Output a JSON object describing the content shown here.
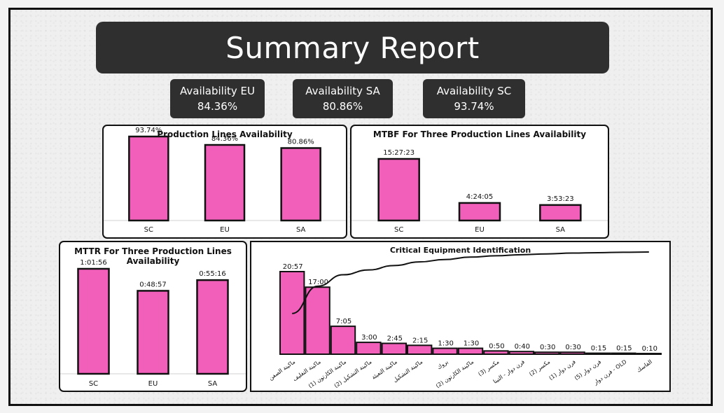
{
  "header": {
    "title": "Summary Report"
  },
  "kpis": [
    {
      "label": "Availability EU",
      "value": "84.36%"
    },
    {
      "label": "Availability SA",
      "value": "80.86%"
    },
    {
      "label": "Availability SC",
      "value": "93.74%"
    }
  ],
  "colors": {
    "bar": "#f25fba",
    "bar_stroke": "#111111",
    "tile_bg": "#2f2f2f"
  },
  "chart_data": [
    {
      "type": "bar",
      "title": "Production Lines Availability",
      "categories": [
        "SC",
        "EU",
        "SA"
      ],
      "values": [
        93.74,
        84.36,
        80.86
      ],
      "data_labels": [
        "93.74%",
        "84.36%",
        "80.86%"
      ],
      "ylim": [
        0,
        100
      ]
    },
    {
      "type": "bar",
      "title": "MTBF For Three Production Lines Availability",
      "categories": [
        "SC",
        "EU",
        "SA"
      ],
      "values": [
        927.38,
        264.08,
        233.38
      ],
      "value_unit": "minutes",
      "data_labels": [
        "15:27:23",
        "4:24:05",
        "3:53:23"
      ]
    },
    {
      "type": "bar",
      "title": "MTTR For Three Production Lines Availability",
      "categories": [
        "SC",
        "EU",
        "SA"
      ],
      "values": [
        61.93,
        48.95,
        55.27
      ],
      "value_unit": "minutes",
      "data_labels": [
        "1:01:56",
        "0:48:57",
        "0:55:16"
      ]
    },
    {
      "type": "bar",
      "title": "Critical Equipment Identification",
      "categories": [
        "ماكينة الصفن",
        "ماكينة التغليف",
        "ماكينة الكارتون (1)",
        "ماكينة التشكيل (2)",
        "ماكينة التعبئة",
        "ماكينة التشكيل",
        "بروك",
        "ماكينة الكارتون (2)",
        "مكسر (3)",
        "فرن دوار - التينا",
        "مكسر (2)",
        "فرن دوار (1)",
        "فرن دوار (5)",
        "فرن دوار - OLD",
        "الفاسك"
      ],
      "values": [
        20.95,
        17.0,
        7.08,
        3.0,
        2.75,
        2.25,
        1.5,
        1.5,
        0.83,
        0.67,
        0.5,
        0.5,
        0.25,
        0.25,
        0.17
      ],
      "value_unit": "hours",
      "data_labels": [
        "20:57",
        "17:00",
        "7:05",
        "3:00",
        "2:45",
        "2:15",
        "1:30",
        "1:30",
        "0:50",
        "0:40",
        "0:30",
        "0:30",
        "0:15",
        "0:15",
        "0:10"
      ],
      "cumulative_line": true
    }
  ]
}
